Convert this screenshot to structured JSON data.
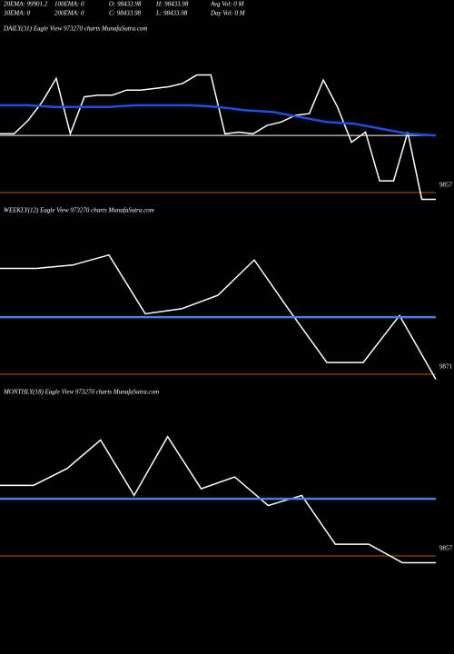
{
  "header": {
    "lines": [
      [
        "20EMA: 99901.2",
        "100EMA: 0",
        "O: 98433.98",
        "H: 98433.98",
        "Avg Vol: 0  M"
      ],
      [
        "30EMA: 0",
        "200EMA: 0",
        "C: 98433.98",
        "L: 98433.98",
        "Day Vol: 0  M"
      ]
    ]
  },
  "chart_data": [
    {
      "type": "line",
      "title": "DAILY(31) Eagle   View  973270  charts MunafaSutra.com",
      "ylim": [
        0,
        100
      ],
      "series": [
        {
          "color": "#ffffff",
          "values": [
            42,
            42,
            50,
            61,
            75,
            42,
            64,
            65,
            65,
            68,
            68,
            69,
            70,
            72,
            77,
            77,
            42,
            43,
            42,
            47,
            49,
            53,
            54,
            74,
            58,
            37,
            43,
            14,
            14,
            43,
            3,
            3
          ]
        },
        {
          "color": "#1f4fe0",
          "values": [
            59,
            59,
            58,
            58,
            58,
            59,
            59,
            59,
            58,
            56,
            55,
            52,
            49,
            48,
            45,
            42,
            41
          ]
        }
      ],
      "hlines": [
        {
          "value": 41,
          "color": "#ffffff"
        },
        {
          "value": 7,
          "color": "#b85c00",
          "label": "9857"
        }
      ]
    },
    {
      "type": "line",
      "title": "WEEKLY(12) Eagle   View  973270  charts MunafaSutra.com",
      "ylim": [
        0,
        100
      ],
      "series": [
        {
          "color": "#ffffff",
          "values": [
            70,
            70,
            72,
            78,
            43,
            46,
            54,
            75,
            44,
            14,
            14,
            42,
            4
          ]
        },
        {
          "color": "#4a7fe8",
          "values": [
            41,
            41
          ]
        }
      ],
      "hlines": [
        {
          "value": 7,
          "color": "#b85c00",
          "label": "9871"
        }
      ]
    },
    {
      "type": "line",
      "title": "MONTHLY(18) Eagle   View  973270  charts MunafaSutra.com",
      "ylim": [
        0,
        100
      ],
      "series": [
        {
          "color": "#ffffff",
          "values": [
            49,
            49,
            59,
            76,
            43,
            78,
            47,
            54,
            37,
            43,
            14,
            14,
            3,
            3
          ]
        },
        {
          "color": "#4a7fe8",
          "values": [
            41,
            41
          ]
        }
      ],
      "hlines": [
        {
          "value": 7,
          "color": "#b85c00",
          "label": "9857"
        }
      ]
    }
  ]
}
